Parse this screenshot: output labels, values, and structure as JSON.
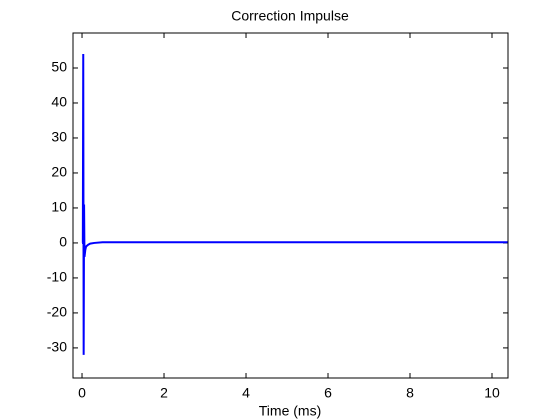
{
  "chart_data": {
    "type": "line",
    "title": "Correction Impulse",
    "x_label": "Time (ms)",
    "x": [
      0,
      0.02,
      0.03,
      0.04,
      0.05,
      0.06,
      0.08,
      0.1,
      0.15,
      0.2,
      0.3,
      0.5,
      1,
      10.39
    ],
    "series": [
      {
        "color": "#0000ff",
        "values": [
          0,
          0,
          54,
          -32,
          11,
          -4,
          -2,
          -1,
          -0.5,
          -0.2,
          0,
          0.2,
          0.2,
          0.2
        ]
      }
    ],
    "xlim": [
      -0.22,
      10.39
    ],
    "ylim": [
      -38.6,
      60
    ],
    "xticks": [
      0,
      2,
      4,
      6,
      8,
      10
    ],
    "yticks": [
      -30,
      -20,
      -10,
      0,
      10,
      20,
      30,
      40,
      50
    ]
  }
}
